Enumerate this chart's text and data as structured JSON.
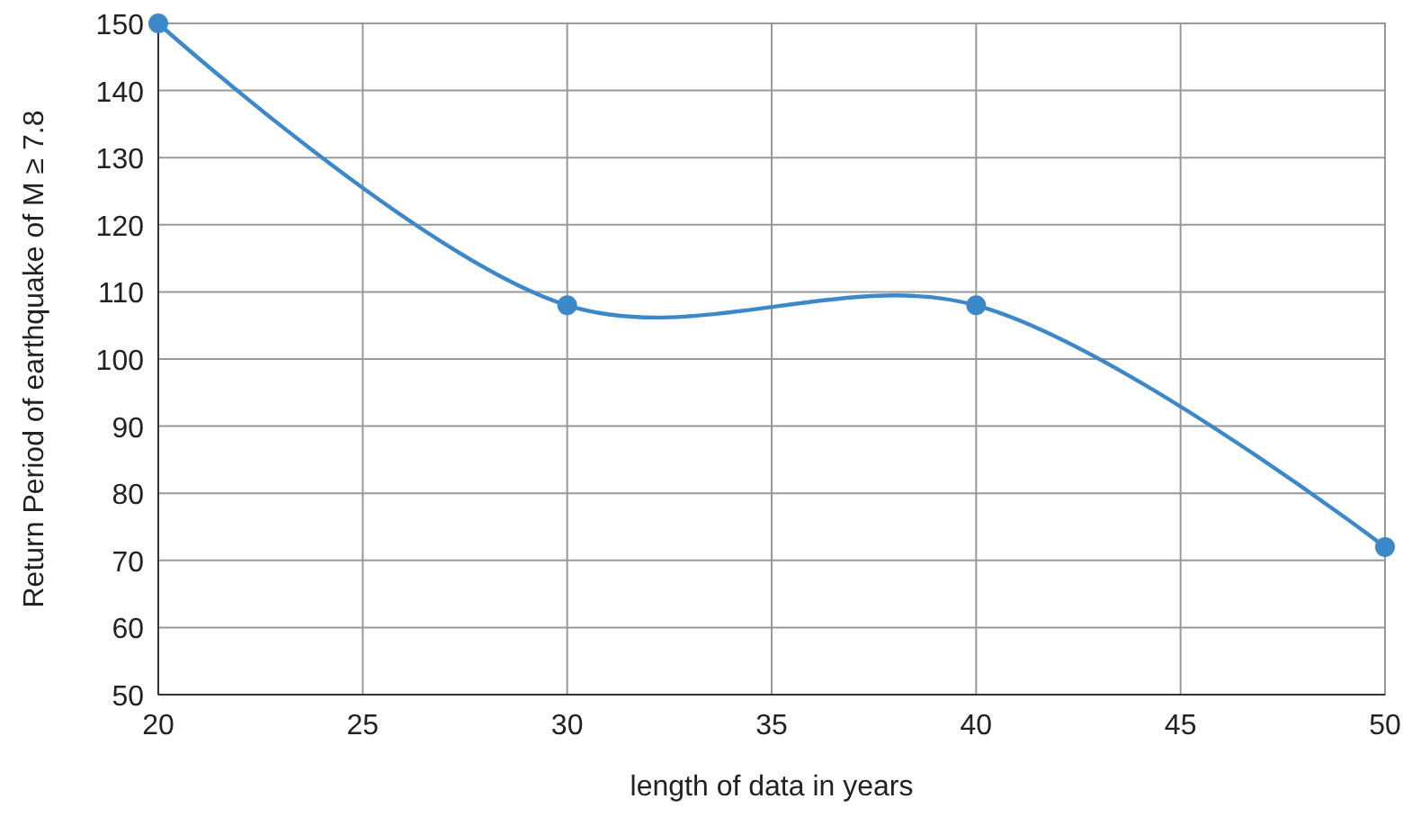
{
  "chart_data": {
    "type": "line",
    "xlabel": "length of data in years",
    "ylabel": "Return Period of earthquake of M ≥ 7.8",
    "x": [
      20,
      30,
      40,
      50
    ],
    "series": [
      {
        "color": "#3d88c9",
        "values": [
          150,
          108,
          108,
          72
        ]
      }
    ],
    "xlim": [
      20,
      50
    ],
    "xticks": [
      20,
      25,
      30,
      35,
      40,
      45,
      50
    ],
    "ylim": [
      50,
      150
    ],
    "yticks": [
      50,
      60,
      70,
      80,
      90,
      100,
      110,
      120,
      130,
      140,
      150
    ],
    "grid": true,
    "marker": "circle",
    "line_style": "solid"
  }
}
